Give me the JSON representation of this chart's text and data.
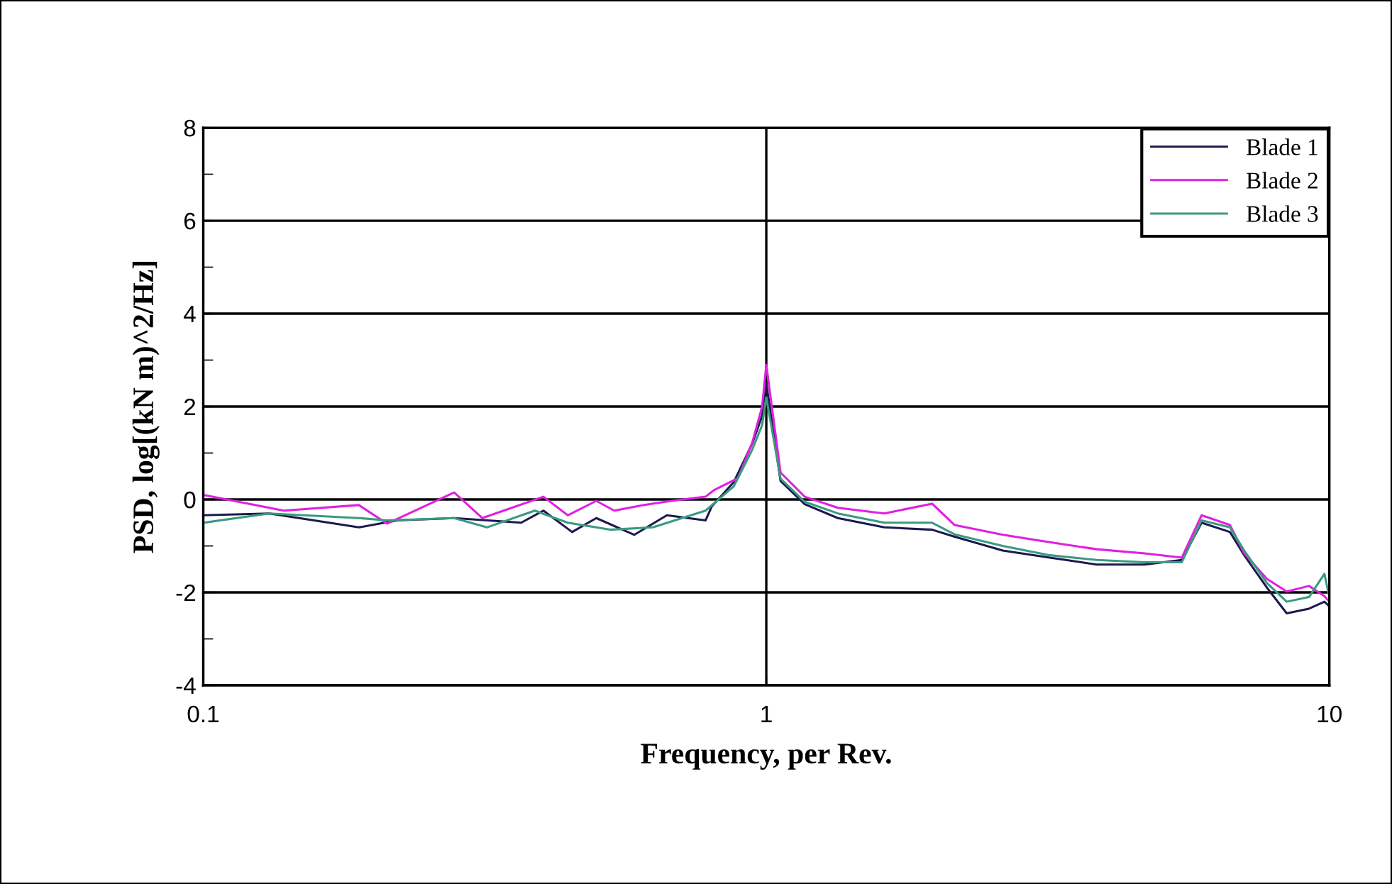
{
  "chart_data": {
    "type": "line",
    "xlabel": "Frequency, per Rev.",
    "ylabel": "PSD, log[(kN m)^2/Hz]",
    "log": "x",
    "xlim": [
      0.1,
      10
    ],
    "xticks": [
      0.1,
      1,
      10
    ],
    "ylim": [
      -4,
      8
    ],
    "yticks": [
      -4,
      {
        "value": -3,
        "label": null
      },
      -2,
      {
        "value": -1,
        "label": null
      },
      0,
      {
        "value": 1,
        "label": null
      },
      2,
      {
        "value": 3,
        "label": null
      },
      4,
      {
        "value": 5,
        "label": null
      },
      6,
      {
        "value": 7,
        "label": null
      },
      8
    ],
    "grid": true,
    "legend": "top right",
    "line_style": "solid",
    "marker": "none",
    "series": [
      {
        "name": "Blade 1",
        "color": "#1a1a4e",
        "x": [
          0.1,
          0.131,
          0.189,
          0.221,
          0.279,
          0.367,
          0.402,
          0.452,
          0.499,
          0.583,
          0.666,
          0.78,
          0.8,
          0.875,
          0.944,
          0.983,
          1.0,
          1.06,
          1.17,
          1.34,
          1.62,
          1.97,
          2.16,
          2.63,
          3.19,
          3.86,
          4.7,
          5.47,
          5.93,
          6.66,
          7.06,
          7.75,
          8.4,
          9.2,
          9.8,
          10
        ],
        "values": [
          -0.34,
          -0.3,
          -0.6,
          -0.45,
          -0.4,
          -0.5,
          -0.24,
          -0.7,
          -0.4,
          -0.76,
          -0.34,
          -0.45,
          -0.15,
          0.37,
          1.2,
          1.8,
          2.5,
          0.4,
          -0.1,
          -0.4,
          -0.6,
          -0.65,
          -0.8,
          -1.1,
          -1.25,
          -1.4,
          -1.4,
          -1.3,
          -0.5,
          -0.7,
          -1.2,
          -1.9,
          -2.45,
          -2.35,
          -2.2,
          -2.3
        ]
      },
      {
        "name": "Blade 2",
        "color": "#e020e0",
        "x": [
          0.1,
          0.139,
          0.189,
          0.212,
          0.279,
          0.313,
          0.402,
          0.444,
          0.499,
          0.537,
          0.604,
          0.678,
          0.78,
          0.807,
          0.891,
          0.944,
          0.983,
          1.0,
          1.06,
          1.17,
          1.34,
          1.62,
          1.97,
          2.16,
          2.63,
          3.19,
          3.86,
          4.7,
          5.47,
          5.93,
          6.66,
          7.06,
          7.75,
          8.4,
          9.2,
          9.8,
          10
        ],
        "values": [
          0.1,
          -0.24,
          -0.12,
          -0.52,
          0.15,
          -0.4,
          0.06,
          -0.34,
          -0.03,
          -0.24,
          -0.12,
          -0.03,
          0.06,
          0.2,
          0.46,
          1.22,
          2.0,
          2.9,
          0.58,
          0.06,
          -0.18,
          -0.3,
          -0.09,
          -0.55,
          -0.76,
          -0.92,
          -1.07,
          -1.16,
          -1.25,
          -0.34,
          -0.55,
          -1.16,
          -1.71,
          -1.98,
          -1.86,
          -2.08,
          -2.2
        ]
      },
      {
        "name": "Blade 3",
        "color": "#3a9a80",
        "x": [
          0.1,
          0.131,
          0.189,
          0.212,
          0.279,
          0.319,
          0.388,
          0.444,
          0.528,
          0.629,
          0.78,
          0.875,
          0.944,
          0.983,
          1.0,
          1.06,
          1.17,
          1.34,
          1.62,
          1.97,
          2.16,
          2.63,
          3.19,
          3.86,
          4.7,
          5.47,
          5.93,
          6.66,
          7.06,
          7.75,
          8.4,
          9.2,
          9.8,
          10
        ],
        "values": [
          -0.5,
          -0.3,
          -0.4,
          -0.45,
          -0.4,
          -0.6,
          -0.24,
          -0.5,
          -0.65,
          -0.6,
          -0.24,
          0.28,
          1.07,
          1.6,
          2.2,
          0.45,
          -0.05,
          -0.3,
          -0.5,
          -0.5,
          -0.75,
          -1.0,
          -1.2,
          -1.3,
          -1.35,
          -1.35,
          -0.45,
          -0.6,
          -1.1,
          -1.8,
          -2.2,
          -2.1,
          -1.6,
          -2.1
        ]
      }
    ]
  }
}
